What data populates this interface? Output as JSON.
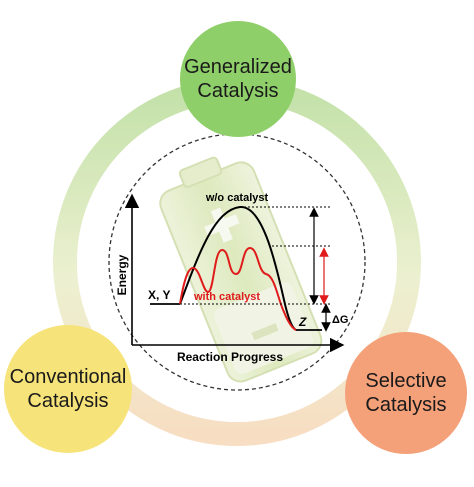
{
  "bubbles": {
    "top": {
      "line1": "Generalized",
      "line2": "Catalysis",
      "color": "#8fcf6a"
    },
    "left": {
      "line1": "Conventional",
      "line2": "Catalysis",
      "color": "#f6e37a"
    },
    "right": {
      "line1": "Selective",
      "line2": "Catalysis",
      "color": "#f4a079"
    }
  },
  "diagram": {
    "y_axis_label": "Energy",
    "x_axis_label": "Reaction Progress",
    "reactant_label": "X, Y",
    "product_label": "Z",
    "uncatalyzed_label": "w/o catalyst",
    "catalyzed_label": "with catalyst",
    "delta_g_label": "ΔG",
    "uncatalyzed_color": "#000000",
    "catalyzed_color": "#e01b1b"
  },
  "colors": {
    "ring_green": "#b9dc9a",
    "ring_yellow": "#f3e7a9",
    "ring_orange": "#f6c2a6",
    "battery": "#d8e6b6"
  }
}
